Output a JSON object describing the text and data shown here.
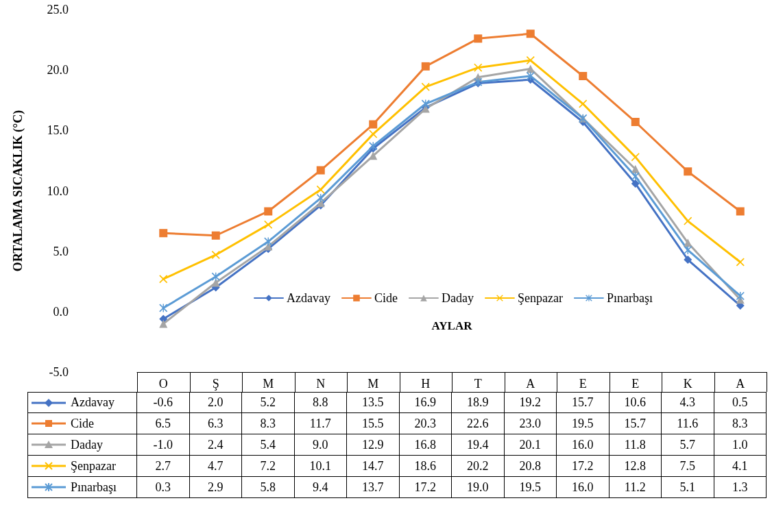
{
  "chart_data": {
    "type": "line",
    "xlabel": "AYLAR",
    "ylabel": "ORTALAMA SICAKLIK (°C)",
    "categories": [
      "O",
      "Ş",
      "M",
      "N",
      "M",
      "H",
      "T",
      "A",
      "E",
      "E",
      "K",
      "A"
    ],
    "ylim": [
      -5,
      25
    ],
    "yticks": [
      {
        "value": -5,
        "label": "-5.0"
      },
      {
        "value": 0,
        "label": "0.0"
      },
      {
        "value": 5,
        "label": "5.0"
      },
      {
        "value": 10,
        "label": "10.0"
      },
      {
        "value": 15,
        "label": "15.0"
      },
      {
        "value": 20,
        "label": "20.0"
      },
      {
        "value": 25,
        "label": "25.0"
      }
    ],
    "grid": false,
    "legend": "bottom",
    "series": [
      {
        "name": "Azdavay",
        "color": "#4472c4",
        "marker": "diamond",
        "values": [
          -0.6,
          2.0,
          5.2,
          8.8,
          13.5,
          16.9,
          18.9,
          19.2,
          15.7,
          10.6,
          4.3,
          0.5
        ],
        "value_labels": [
          "-0.6",
          "2.0",
          "5.2",
          "8.8",
          "13.5",
          "16.9",
          "18.9",
          "19.2",
          "15.7",
          "10.6",
          "4.3",
          "0.5"
        ]
      },
      {
        "name": "Cide",
        "color": "#ed7d31",
        "marker": "square",
        "values": [
          6.5,
          6.3,
          8.3,
          11.7,
          15.5,
          20.3,
          22.6,
          23.0,
          19.5,
          15.7,
          11.6,
          8.3
        ],
        "value_labels": [
          "6.5",
          "6.3",
          "8.3",
          "11.7",
          "15.5",
          "20.3",
          "22.6",
          "23.0",
          "19.5",
          "15.7",
          "11.6",
          "8.3"
        ]
      },
      {
        "name": "Daday",
        "color": "#a5a5a5",
        "marker": "triangle",
        "values": [
          -1.0,
          2.4,
          5.4,
          9.0,
          12.9,
          16.8,
          19.4,
          20.1,
          16.0,
          11.8,
          5.7,
          1.0
        ],
        "value_labels": [
          "-1.0",
          "2.4",
          "5.4",
          "9.0",
          "12.9",
          "16.8",
          "19.4",
          "20.1",
          "16.0",
          "11.8",
          "5.7",
          "1.0"
        ]
      },
      {
        "name": "Şenpazar",
        "color": "#ffc000",
        "marker": "cross",
        "values": [
          2.7,
          4.7,
          7.2,
          10.1,
          14.7,
          18.6,
          20.2,
          20.8,
          17.2,
          12.8,
          7.5,
          4.1
        ],
        "value_labels": [
          "2.7",
          "4.7",
          "7.2",
          "10.1",
          "14.7",
          "18.6",
          "20.2",
          "20.8",
          "17.2",
          "12.8",
          "7.5",
          "4.1"
        ]
      },
      {
        "name": "Pınarbaşı",
        "color": "#5b9bd5",
        "marker": "star",
        "values": [
          0.3,
          2.9,
          5.8,
          9.4,
          13.7,
          17.2,
          19.0,
          19.5,
          16.0,
          11.2,
          5.1,
          1.3
        ],
        "value_labels": [
          "0.3",
          "2.9",
          "5.8",
          "9.4",
          "13.7",
          "17.2",
          "19.0",
          "19.5",
          "16.0",
          "11.2",
          "5.1",
          "1.3"
        ]
      }
    ]
  }
}
